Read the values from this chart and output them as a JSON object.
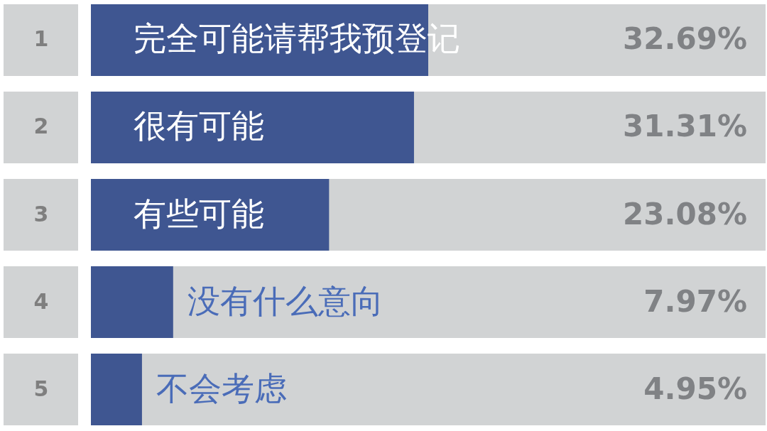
{
  "chart_data": {
    "type": "bar",
    "orientation": "horizontal",
    "categories": [
      "完全可能请帮我预登记",
      "很有可能",
      "有些可能",
      "没有什么意向",
      "不会考虑"
    ],
    "values": [
      32.69,
      31.31,
      23.08,
      7.97,
      4.95
    ],
    "color": "#3f5691",
    "value_labels": [
      "32.69%",
      "31.31%",
      "23.08%",
      "7.97%",
      "4.95%"
    ],
    "annotations": [
      "1",
      "2",
      "3",
      "4",
      "5"
    ],
    "tick_labels": "y"
  }
}
